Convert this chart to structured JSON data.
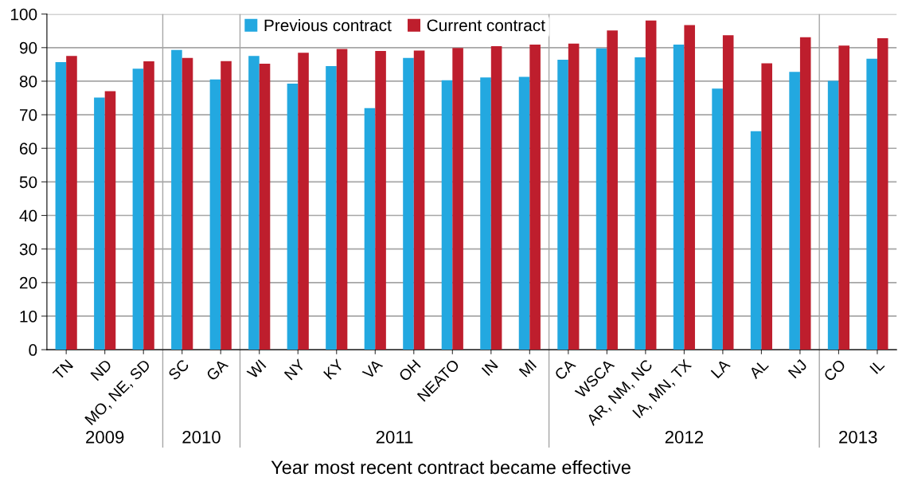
{
  "chart_data": {
    "type": "bar",
    "xlabel": "Year most recent contract became effective",
    "categories": [
      "TN",
      "ND",
      "MO, NE, SD",
      "SC",
      "GA",
      "WI",
      "NY",
      "KY",
      "VA",
      "OH",
      "NEATO",
      "IN",
      "MI",
      "CA",
      "WSCA",
      "AR, NM, NC",
      "IA, MN, TX",
      "LA",
      "AL",
      "NJ",
      "CO",
      "IL"
    ],
    "series": [
      {
        "name": "Previous contract",
        "color": "#23a8e0",
        "values": [
          85.7,
          75.1,
          83.7,
          89.3,
          80.5,
          87.5,
          79.3,
          84.5,
          72.0,
          86.9,
          80.3,
          81.1,
          81.3,
          86.4,
          89.8,
          87.1,
          90.9,
          77.8,
          65.1,
          82.8,
          80.1,
          86.7
        ]
      },
      {
        "name": "Current contract",
        "color": "#be1e2d",
        "values": [
          87.5,
          77.0,
          85.9,
          86.9,
          86.0,
          85.2,
          88.5,
          89.6,
          89.0,
          89.1,
          89.9,
          90.4,
          90.9,
          91.2,
          95.1,
          98.1,
          96.7,
          93.7,
          85.3,
          93.1,
          90.6,
          92.8
        ]
      }
    ],
    "ylim": [
      0,
      100
    ],
    "yticks": [
      0,
      10,
      20,
      30,
      40,
      50,
      60,
      70,
      80,
      90,
      100
    ],
    "annotations": [
      "2009",
      "2010",
      "2011",
      "2012",
      "2013"
    ],
    "grid": "y",
    "legend": "top"
  }
}
